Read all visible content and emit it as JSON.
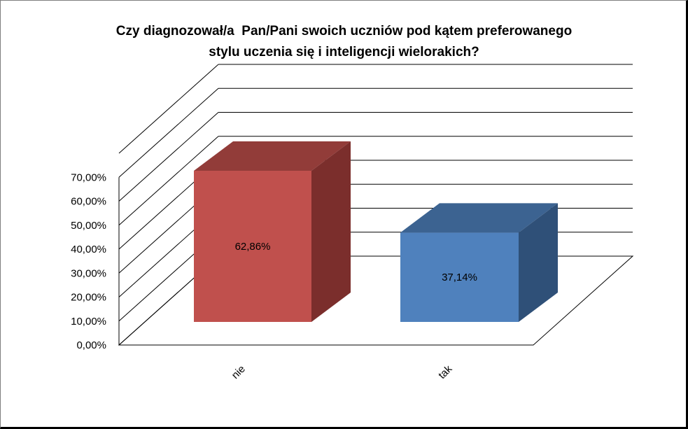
{
  "chart_data": {
    "type": "bar",
    "title_line1": "Czy diagnozował/a  Pan/Pani swoich uczniów pod kątem preferowanego",
    "title_line2": "stylu uczenia się i inteligencji wielorakich?",
    "categories": [
      "nie",
      "tak"
    ],
    "values": [
      62.86,
      37.14
    ],
    "data_labels": [
      "62,86%",
      "37,14%"
    ],
    "ytick_values": [
      0,
      10,
      20,
      30,
      40,
      50,
      60,
      70,
      80
    ],
    "ytick_labels": [
      "0,00%",
      "10,00%",
      "20,00%",
      "30,00%",
      "40,00%",
      "50,00%",
      "60,00%",
      "70,00%",
      ""
    ],
    "ylim": [
      0,
      80
    ],
    "three_d": true,
    "grid": true,
    "legend": "none",
    "colors": {
      "nie_front": "#c0504d",
      "nie_side": "#7b2e2c",
      "nie_top": "#923c39",
      "tak_front": "#4f81bd",
      "tak_side": "#2f5078",
      "tak_top": "#3c6391",
      "grid": "#000000"
    }
  }
}
